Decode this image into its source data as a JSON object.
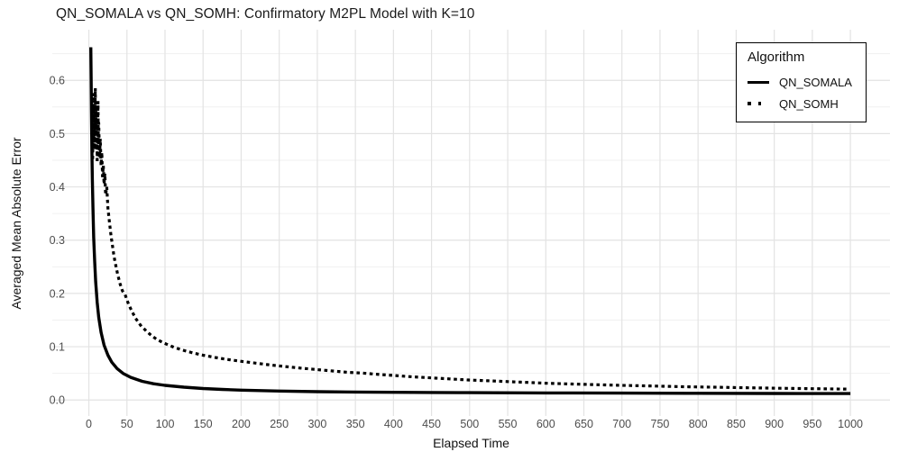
{
  "title": "QN_SOMALA vs QN_SOMH: Confirmatory M2PL Model with K=10",
  "chart_data": {
    "type": "line",
    "title": "QN_SOMALA vs QN_SOMH: Confirmatory M2PL Model with K=10",
    "xlabel": "Elapsed Time",
    "ylabel": "Averaged Mean Absolute Error",
    "xlim": [
      -48,
      1052
    ],
    "ylim": [
      -0.03,
      0.695
    ],
    "x_ticks": [
      0,
      50,
      100,
      150,
      200,
      250,
      300,
      350,
      400,
      450,
      500,
      550,
      600,
      650,
      700,
      750,
      800,
      850,
      900,
      950,
      1000
    ],
    "y_ticks": [
      0,
      0.1,
      0.2,
      0.3,
      0.4,
      0.5,
      0.6
    ],
    "y_tick_labels": [
      "0.0",
      "0.1",
      "0.2",
      "0.3",
      "0.4",
      "0.5",
      "0.6"
    ],
    "y_minor_ticks": [
      0.05,
      0.15,
      0.25,
      0.35,
      0.45,
      0.55,
      0.65
    ],
    "grid": "major-xy, minor-y, no axis lines (theme_minimal)",
    "legend_title": "Algorithm",
    "legend_position": "top-right",
    "colors": {
      "line": "#000000",
      "grid_major": "#e3e3e3",
      "grid_minor": "#f0f0f0",
      "tick_text": "#4d4d4d"
    },
    "series": [
      {
        "name": "QN_SOMALA",
        "style": "solid",
        "color": "#000000",
        "points": [
          [
            2.6,
            0.662
          ],
          [
            3,
            0.6
          ],
          [
            3.4,
            0.545
          ],
          [
            4,
            0.47
          ],
          [
            4.6,
            0.415
          ],
          [
            5.4,
            0.36
          ],
          [
            6.4,
            0.305
          ],
          [
            7.6,
            0.26
          ],
          [
            9,
            0.222
          ],
          [
            11,
            0.183
          ],
          [
            13,
            0.155
          ],
          [
            16,
            0.127
          ],
          [
            20,
            0.103
          ],
          [
            25,
            0.084
          ],
          [
            30,
            0.071
          ],
          [
            37,
            0.059
          ],
          [
            45,
            0.05
          ],
          [
            55,
            0.0425
          ],
          [
            70,
            0.035
          ],
          [
            85,
            0.0305
          ],
          [
            100,
            0.0275
          ],
          [
            125,
            0.024
          ],
          [
            150,
            0.0215
          ],
          [
            175,
            0.0198
          ],
          [
            200,
            0.0185
          ],
          [
            250,
            0.0168
          ],
          [
            300,
            0.0157
          ],
          [
            350,
            0.015
          ],
          [
            400,
            0.0145
          ],
          [
            450,
            0.0141
          ],
          [
            500,
            0.0138
          ],
          [
            600,
            0.0133
          ],
          [
            700,
            0.0129
          ],
          [
            800,
            0.0126
          ],
          [
            900,
            0.0123
          ],
          [
            1000,
            0.012
          ]
        ]
      },
      {
        "name": "QN_SOMH",
        "style": "dotted",
        "color": "#000000",
        "points": [
          [
            5,
            0.455
          ],
          [
            5.5,
            0.52
          ],
          [
            6,
            0.575
          ],
          [
            6.5,
            0.49
          ],
          [
            7,
            0.55
          ],
          [
            7.5,
            0.47
          ],
          [
            8,
            0.535
          ],
          [
            8.5,
            0.585
          ],
          [
            9,
            0.5
          ],
          [
            9.5,
            0.55
          ],
          [
            10,
            0.47
          ],
          [
            10.5,
            0.525
          ],
          [
            11,
            0.45
          ],
          [
            11.5,
            0.5
          ],
          [
            12,
            0.56
          ],
          [
            12.5,
            0.48
          ],
          [
            13,
            0.52
          ],
          [
            14,
            0.455
          ],
          [
            15,
            0.49
          ],
          [
            16,
            0.44
          ],
          [
            17,
            0.465
          ],
          [
            18,
            0.42
          ],
          [
            19,
            0.44
          ],
          [
            20,
            0.405
          ],
          [
            21,
            0.425
          ],
          [
            22,
            0.385
          ],
          [
            23.5,
            0.4
          ],
          [
            25,
            0.36
          ],
          [
            27,
            0.335
          ],
          [
            29,
            0.31
          ],
          [
            31,
            0.29
          ],
          [
            33,
            0.27
          ],
          [
            35,
            0.255
          ],
          [
            38,
            0.235
          ],
          [
            41,
            0.218
          ],
          [
            44,
            0.205
          ],
          [
            48,
            0.196
          ],
          [
            52,
            0.18
          ],
          [
            57,
            0.165
          ],
          [
            62,
            0.152
          ],
          [
            68,
            0.14
          ],
          [
            75,
            0.13
          ],
          [
            82,
            0.121
          ],
          [
            90,
            0.113
          ],
          [
            100,
            0.106
          ],
          [
            110,
            0.1
          ],
          [
            122,
            0.094
          ],
          [
            135,
            0.089
          ],
          [
            150,
            0.084
          ],
          [
            165,
            0.08
          ],
          [
            180,
            0.0765
          ],
          [
            200,
            0.0725
          ],
          [
            220,
            0.069
          ],
          [
            240,
            0.0655
          ],
          [
            260,
            0.0625
          ],
          [
            280,
            0.0595
          ],
          [
            300,
            0.057
          ],
          [
            320,
            0.0545
          ],
          [
            340,
            0.052
          ],
          [
            360,
            0.0505
          ],
          [
            380,
            0.048
          ],
          [
            400,
            0.046
          ],
          [
            425,
            0.0435
          ],
          [
            450,
            0.0415
          ],
          [
            475,
            0.0395
          ],
          [
            500,
            0.0375
          ],
          [
            525,
            0.036
          ],
          [
            550,
            0.0345
          ],
          [
            575,
            0.033
          ],
          [
            600,
            0.0315
          ],
          [
            630,
            0.0302
          ],
          [
            660,
            0.029
          ],
          [
            700,
            0.0275
          ],
          [
            740,
            0.0262
          ],
          [
            780,
            0.025
          ],
          [
            820,
            0.024
          ],
          [
            860,
            0.023
          ],
          [
            900,
            0.0222
          ],
          [
            950,
            0.0212
          ],
          [
            1000,
            0.0203
          ]
        ]
      }
    ]
  }
}
